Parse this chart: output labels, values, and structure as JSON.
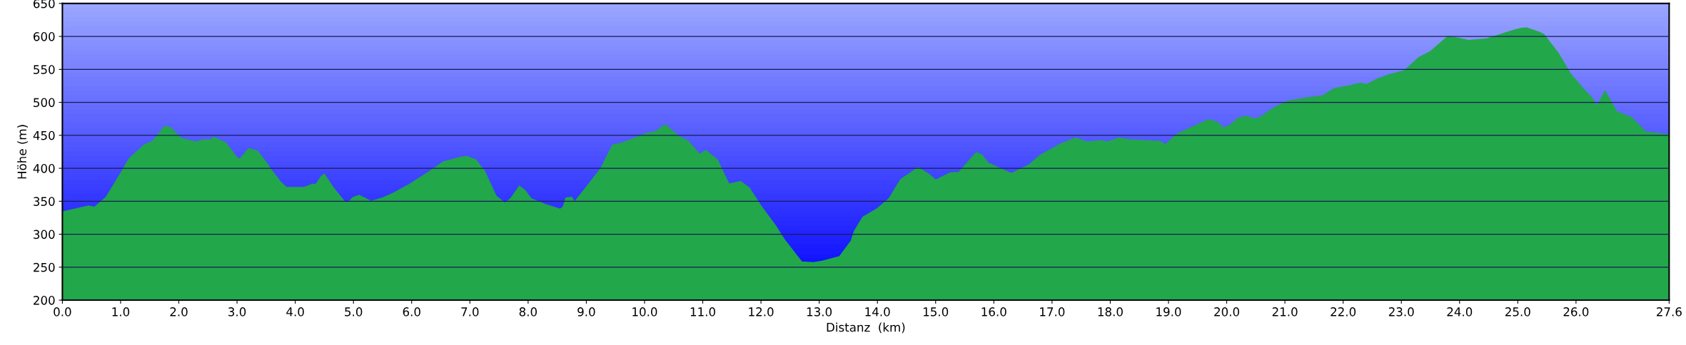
{
  "chart_data": {
    "type": "area",
    "xlabel": "Distanz  (km)",
    "ylabel": "Höhe (m)",
    "xlim": [
      0,
      27.6
    ],
    "ylim": [
      200,
      650
    ],
    "grid": "y",
    "legend": false,
    "xticks": [
      {
        "value": 0,
        "label": "0.0"
      },
      {
        "value": 1,
        "label": "1.0"
      },
      {
        "value": 2,
        "label": "2.0"
      },
      {
        "value": 3,
        "label": "3.0"
      },
      {
        "value": 4,
        "label": "4.0"
      },
      {
        "value": 5,
        "label": "5.0"
      },
      {
        "value": 6,
        "label": "6.0"
      },
      {
        "value": 7,
        "label": "7.0"
      },
      {
        "value": 8,
        "label": "8.0"
      },
      {
        "value": 9,
        "label": "9.0"
      },
      {
        "value": 10,
        "label": "10.0"
      },
      {
        "value": 11,
        "label": "11.0"
      },
      {
        "value": 12,
        "label": "12.0"
      },
      {
        "value": 13,
        "label": "13.0"
      },
      {
        "value": 14,
        "label": "14.0"
      },
      {
        "value": 15,
        "label": "15.0"
      },
      {
        "value": 16,
        "label": "16.0"
      },
      {
        "value": 17,
        "label": "17.0"
      },
      {
        "value": 18,
        "label": "18.0"
      },
      {
        "value": 19,
        "label": "19.0"
      },
      {
        "value": 20,
        "label": "20.0"
      },
      {
        "value": 21,
        "label": "21.0"
      },
      {
        "value": 22,
        "label": "22.0"
      },
      {
        "value": 23,
        "label": "23.0"
      },
      {
        "value": 24,
        "label": "24.0"
      },
      {
        "value": 25,
        "label": "25.0"
      },
      {
        "value": 26,
        "label": "26.0"
      },
      {
        "value": 27.6,
        "label": "27.6"
      }
    ],
    "yticks": [
      200,
      250,
      300,
      350,
      400,
      450,
      500,
      550,
      600,
      650
    ],
    "series": [
      {
        "color": "#22a84a",
        "x": [
          0,
          0.45,
          0.55,
          0.75,
          1.0,
          1.15,
          1.4,
          1.55,
          1.75,
          1.85,
          2.05,
          2.3,
          2.4,
          2.55,
          2.6,
          2.8,
          3.0,
          3.05,
          3.2,
          3.35,
          3.5,
          3.6,
          3.75,
          3.85,
          4.0,
          4.15,
          4.3,
          4.35,
          4.45,
          4.5,
          4.65,
          4.85,
          4.9,
          5.0,
          5.1,
          5.3,
          5.5,
          5.7,
          5.95,
          6.3,
          6.55,
          6.85,
          6.95,
          7.1,
          7.25,
          7.45,
          7.6,
          7.7,
          7.85,
          7.95,
          8.05,
          8.3,
          8.55,
          8.6,
          8.65,
          8.75,
          8.8,
          9.05,
          9.25,
          9.45,
          9.6,
          9.75,
          10.0,
          10.2,
          10.35,
          10.45,
          10.6,
          10.75,
          10.95,
          11.05,
          11.25,
          11.45,
          11.65,
          11.8,
          12.0,
          12.25,
          12.4,
          12.7,
          12.9,
          13.05,
          13.35,
          13.55,
          13.6,
          13.75,
          14.0,
          14.2,
          14.4,
          14.7,
          14.9,
          15.0,
          15.25,
          15.4,
          15.55,
          15.7,
          15.8,
          15.9,
          16.3,
          16.6,
          16.8,
          17.15,
          17.4,
          17.6,
          17.85,
          17.95,
          18.15,
          18.35,
          18.6,
          18.85,
          18.95,
          19.15,
          19.4,
          19.7,
          19.85,
          19.95,
          20.05,
          20.2,
          20.35,
          20.45,
          20.55,
          20.8,
          21.05,
          21.4,
          21.65,
          21.85,
          22.1,
          22.3,
          22.4,
          22.6,
          22.8,
          23.05,
          23.3,
          23.5,
          23.8,
          24.0,
          24.15,
          24.45,
          24.7,
          24.95,
          25.05,
          25.15,
          25.35,
          25.45,
          25.7,
          25.9,
          26.1,
          26.3,
          26.35,
          26.5,
          26.7,
          26.95,
          27.2,
          27.4,
          27.6
        ],
        "values": [
          334,
          343,
          341,
          356,
          392,
          415,
          435,
          441,
          463,
          462,
          445,
          440,
          443,
          443,
          447,
          439,
          416,
          414,
          430,
          426,
          409,
          396,
          379,
          371,
          371,
          371,
          376,
          375,
          388,
          391,
          371,
          349,
          348,
          356,
          359,
          350,
          355,
          363,
          375,
          395,
          410,
          417,
          418,
          413,
          396,
          358,
          347,
          354,
          373,
          366,
          354,
          345,
          338,
          341,
          355,
          356,
          349,
          377,
          400,
          435,
          438,
          443,
          452,
          456,
          466,
          459,
          448,
          441,
          421,
          427,
          413,
          376,
          380,
          370,
          343,
          313,
          292,
          258,
          257,
          259,
          266,
          290,
          304,
          326,
          339,
          354,
          383,
          401,
          390,
          382,
          393,
          394,
          409,
          424,
          420,
          408,
          392,
          405,
          420,
          437,
          446,
          440,
          442,
          440,
          446,
          443,
          442,
          441,
          436,
          452,
          462,
          474,
          469,
          461,
          465,
          476,
          479,
          475,
          476,
          491,
          502,
          507,
          510,
          521,
          525,
          529,
          527,
          536,
          542,
          548,
          568,
          577,
          600,
          597,
          594,
          596,
          603,
          610,
          612,
          613,
          607,
          603,
          574,
          544,
          523,
          504,
          493,
          517,
          486,
          477,
          455,
          453,
          451
        ]
      }
    ]
  }
}
